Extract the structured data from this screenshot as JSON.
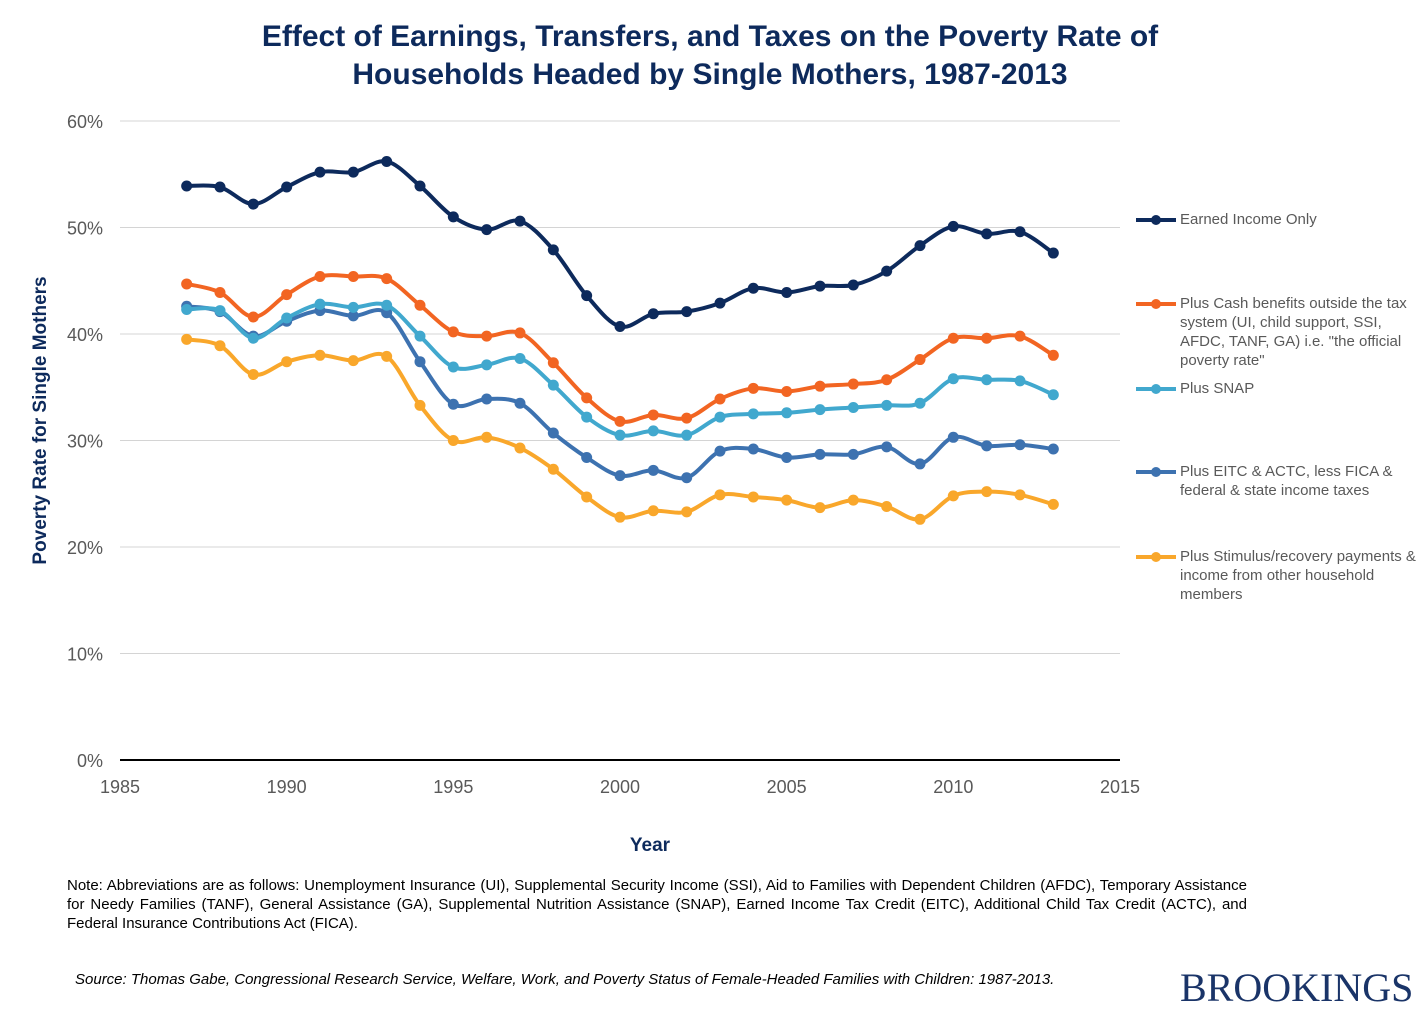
{
  "chart_data": {
    "type": "line",
    "title_lines": [
      "Effect of Earnings, Transfers, and Taxes on the Poverty Rate of",
      "Households Headed by Single Mothers, 1987-2013"
    ],
    "xlabel": "Year",
    "ylabel": "Poverty Rate for Single Mothers",
    "xlim": [
      1985,
      2015
    ],
    "ylim": [
      0,
      60
    ],
    "x_ticks": [
      "1985",
      "1990",
      "1995",
      "2000",
      "2005",
      "2010",
      "2015"
    ],
    "y_ticks": [
      "0%",
      "10%",
      "20%",
      "30%",
      "40%",
      "50%",
      "60%"
    ],
    "grid": true,
    "legend_placement": "right",
    "smooth_lines": true,
    "x": [
      1987,
      1988,
      1989,
      1990,
      1991,
      1992,
      1993,
      1994,
      1995,
      1996,
      1997,
      1998,
      1999,
      2000,
      2001,
      2002,
      2003,
      2004,
      2005,
      2006,
      2007,
      2008,
      2009,
      2010,
      2011,
      2012,
      2013
    ],
    "series": [
      {
        "name": "Earned Income Only",
        "color": "#0d2a5c",
        "values": [
          53.9,
          53.8,
          52.2,
          53.8,
          55.2,
          55.2,
          56.2,
          53.9,
          51.0,
          49.8,
          50.6,
          47.9,
          43.6,
          40.7,
          41.9,
          42.1,
          42.9,
          44.3,
          43.9,
          44.5,
          44.6,
          45.9,
          48.3,
          50.1,
          49.4,
          49.6,
          47.6
        ]
      },
      {
        "name": "Plus Cash benefits outside the tax system (UI, child support, SSI, AFDC, TANF, GA) i.e. \"the official poverty rate\"",
        "color": "#f26522",
        "values": [
          44.7,
          43.9,
          41.6,
          43.7,
          45.4,
          45.4,
          45.2,
          42.7,
          40.2,
          39.8,
          40.1,
          37.3,
          34.0,
          31.8,
          32.4,
          32.1,
          33.9,
          34.9,
          34.6,
          35.1,
          35.3,
          35.7,
          37.6,
          39.6,
          39.6,
          39.8,
          38.0
        ]
      },
      {
        "name": "Plus SNAP",
        "color": "#41a8ce",
        "values": [
          42.3,
          42.2,
          39.6,
          41.5,
          42.8,
          42.5,
          42.7,
          39.8,
          36.9,
          37.1,
          37.7,
          35.2,
          32.2,
          30.5,
          30.9,
          30.5,
          32.2,
          32.5,
          32.6,
          32.9,
          33.1,
          33.3,
          33.5,
          35.8,
          35.7,
          35.6,
          34.3
        ]
      },
      {
        "name": "Plus EITC & ACTC, less FICA & federal & state income taxes",
        "color": "#3d72b0",
        "values": [
          42.6,
          42.1,
          39.8,
          41.2,
          42.2,
          41.7,
          42.0,
          37.4,
          33.4,
          33.9,
          33.5,
          30.7,
          28.4,
          26.7,
          27.2,
          26.5,
          29.0,
          29.2,
          28.4,
          28.7,
          28.7,
          29.4,
          27.8,
          30.3,
          29.5,
          29.6,
          29.2
        ]
      },
      {
        "name": "Plus Stimulus/recovery payments & income from other household members",
        "color": "#f9a72b",
        "values": [
          39.5,
          38.9,
          36.2,
          37.4,
          38.0,
          37.5,
          37.9,
          33.3,
          30.0,
          30.3,
          29.3,
          27.3,
          24.7,
          22.8,
          23.4,
          23.3,
          24.9,
          24.7,
          24.4,
          23.7,
          24.4,
          23.8,
          22.6,
          24.8,
          25.2,
          24.9,
          24.0
        ]
      }
    ]
  },
  "note": "Note: Abbreviations are as follows: Unemployment Insurance (UI), Supplemental Security Income (SSI), Aid to Families with Dependent Children (AFDC), Temporary Assistance for Needy Families (TANF), General Assistance (GA), Supplemental Nutrition Assistance (SNAP), Earned Income Tax Credit (EITC), Additional Child Tax Credit (ACTC), and Federal Insurance Contributions Act (FICA).",
  "source": "Source: Thomas Gabe, Congressional Research Service, Welfare, Work, and Poverty Status of Female-Headed Families with Children: 1987-2013.",
  "logo": "BROOKINGS"
}
